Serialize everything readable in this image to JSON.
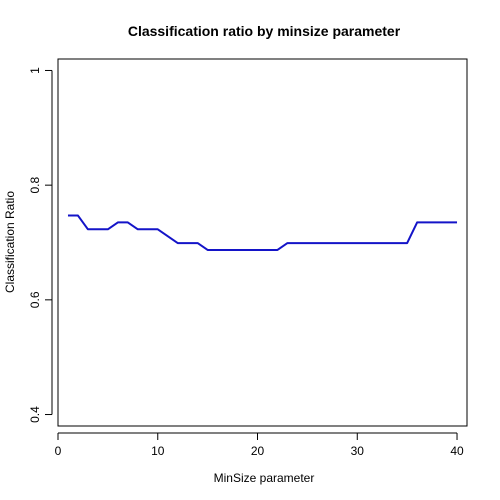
{
  "chart_data": {
    "type": "line",
    "title": "Classification ratio by minsize parameter",
    "xlabel": "MinSize parameter",
    "ylabel": "Classification Ratio",
    "xlim": [
      0,
      41
    ],
    "ylim": [
      0.38,
      1.02
    ],
    "grid": false,
    "legend": "none",
    "x_ticks": [
      0,
      10,
      20,
      30,
      40
    ],
    "x_tick_labels": [
      "0",
      "10",
      "20",
      "30",
      "40"
    ],
    "y_ticks": [
      0.4,
      0.6,
      0.8,
      1.0
    ],
    "y_tick_labels": [
      "0.4",
      "0.6",
      "0.8",
      "1"
    ],
    "series": [
      {
        "color": "#1414c8",
        "x": [
          1,
          2,
          3,
          4,
          5,
          6,
          7,
          8,
          9,
          10,
          11,
          12,
          13,
          14,
          15,
          16,
          17,
          18,
          19,
          20,
          21,
          22,
          23,
          24,
          25,
          26,
          27,
          28,
          29,
          30,
          31,
          32,
          33,
          34,
          35,
          36,
          37,
          38,
          39,
          40
        ],
        "y": [
          0.747,
          0.747,
          0.723,
          0.723,
          0.723,
          0.735,
          0.735,
          0.723,
          0.723,
          0.723,
          0.711,
          0.699,
          0.699,
          0.699,
          0.687,
          0.687,
          0.687,
          0.687,
          0.687,
          0.687,
          0.687,
          0.687,
          0.699,
          0.699,
          0.699,
          0.699,
          0.699,
          0.699,
          0.699,
          0.699,
          0.699,
          0.699,
          0.699,
          0.699,
          0.699,
          0.735,
          0.735,
          0.735,
          0.735,
          0.735
        ]
      }
    ]
  }
}
